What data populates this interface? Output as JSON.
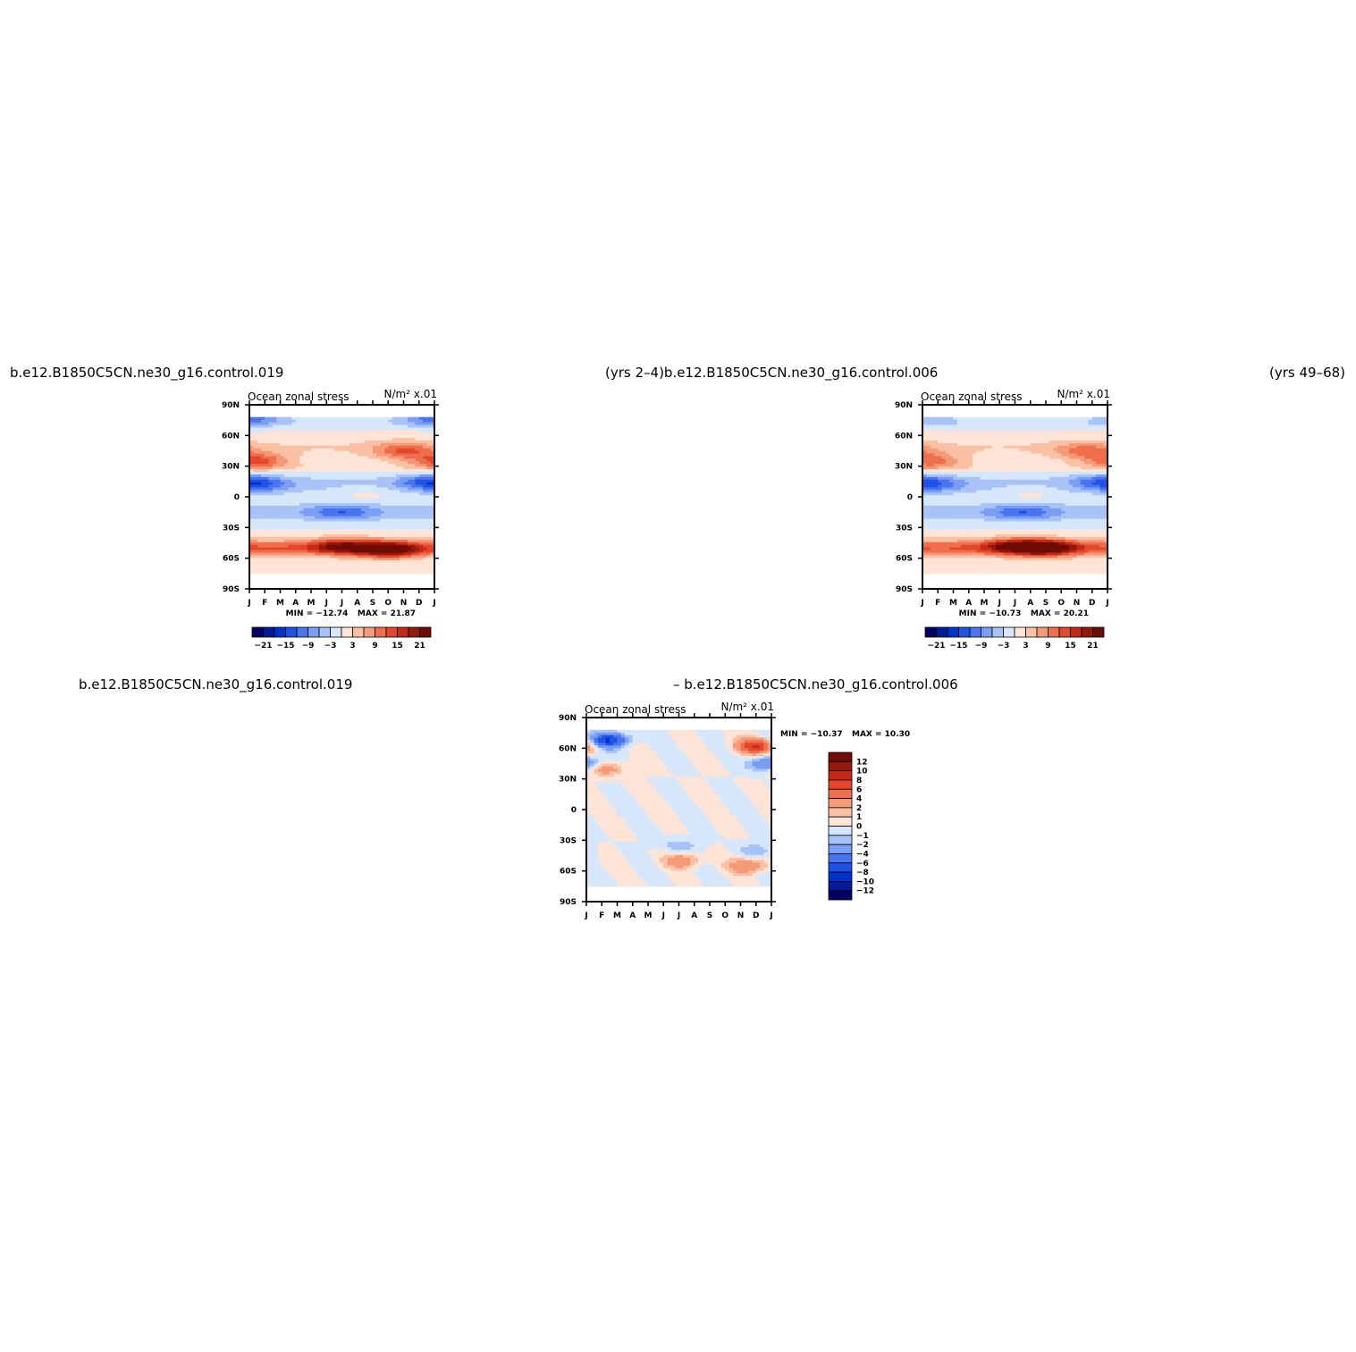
{
  "titles": {
    "top_left": "b.e12.B1850C5CN.ne30_g16.control.019",
    "top_mid": "(yrs  2–4)b.e12.B1850C5CN.ne30_g16.control.006",
    "top_right": "(yrs  49–68)",
    "bottom_left": "b.e12.B1850C5CN.ne30_g16.control.019",
    "bottom_mid": "–  b.e12.B1850C5CN.ne30_g16.control.006"
  },
  "colors": {
    "diverging": [
      "#000066",
      "#001b99",
      "#0033cc",
      "#1f52e6",
      "#4a75f0",
      "#7a9df5",
      "#a8c3f7",
      "#d6e6fb",
      "#fde4d6",
      "#f9c0a3",
      "#f49a78",
      "#ef6f4d",
      "#e4472b",
      "#c42a16",
      "#96180b",
      "#6e0d05"
    ]
  },
  "chart_data": [
    {
      "type": "heatmap",
      "panel": "top-left",
      "title": "Ocean  zonal  stress",
      "units": "N/m²  x.01",
      "x_ticks": [
        "J",
        "F",
        "M",
        "A",
        "M",
        "J",
        "J",
        "A",
        "S",
        "O",
        "N",
        "D",
        "J"
      ],
      "y_ticks": [
        "90N",
        "60N",
        "30N",
        "0",
        "30S",
        "60S",
        "90S"
      ],
      "ylim": [
        -90,
        90
      ],
      "min_text": "MIN = −12.74",
      "max_text": "MAX =  21.87",
      "colorbar_labels": [
        "−21",
        "−15",
        "−9",
        "−3",
        "3",
        "9",
        "15",
        "21"
      ],
      "colorbar_orientation": "horizontal",
      "field_features": [
        {
          "lat": 78,
          "month": 0.5,
          "value": -8
        },
        {
          "lat": 78,
          "month": 11.2,
          "value": -6
        },
        {
          "lat": 35,
          "month": 0.5,
          "value": 15
        },
        {
          "lat": 45,
          "month": 10,
          "value": 12
        },
        {
          "lat": 12,
          "month": 0.8,
          "value": -8
        },
        {
          "lat": 15,
          "month": 11.5,
          "value": -9
        },
        {
          "lat": 5,
          "month": 7.5,
          "value": 3
        },
        {
          "lat": -15,
          "month": 6,
          "value": -9
        },
        {
          "lat": -48,
          "month": 6,
          "value": 15
        },
        {
          "lat": -52,
          "month": 9,
          "value": 21
        }
      ]
    },
    {
      "type": "heatmap",
      "panel": "top-right",
      "title": "Ocean  zonal  stress",
      "units": "N/m²  x.01",
      "x_ticks": [
        "J",
        "F",
        "M",
        "A",
        "M",
        "J",
        "J",
        "A",
        "S",
        "O",
        "N",
        "D",
        "J"
      ],
      "y_ticks": [
        "90N",
        "60N",
        "30N",
        "0",
        "30S",
        "60S",
        "90S"
      ],
      "ylim": [
        -90,
        90
      ],
      "min_text": "MIN = −10.73",
      "max_text": "MAX =  20.21",
      "colorbar_labels": [
        "−21",
        "−15",
        "−9",
        "−3",
        "3",
        "9",
        "15",
        "21"
      ],
      "colorbar_orientation": "horizontal",
      "field_features": [
        {
          "lat": 78,
          "month": 0.5,
          "value": -5
        },
        {
          "lat": 35,
          "month": 0.5,
          "value": 12
        },
        {
          "lat": 45,
          "month": 10.5,
          "value": 10
        },
        {
          "lat": 12,
          "month": 0.8,
          "value": -7
        },
        {
          "lat": 15,
          "month": 11.5,
          "value": -8
        },
        {
          "lat": 5,
          "month": 7,
          "value": 3
        },
        {
          "lat": -15,
          "month": 6.5,
          "value": -9
        },
        {
          "lat": -48,
          "month": 6,
          "value": 15
        },
        {
          "lat": -50,
          "month": 8,
          "value": 20
        }
      ]
    },
    {
      "type": "heatmap",
      "panel": "bottom-difference",
      "title": "Ocean  zonal  stress",
      "units": "N/m²  x.01",
      "x_ticks": [
        "J",
        "F",
        "M",
        "A",
        "M",
        "J",
        "J",
        "A",
        "S",
        "O",
        "N",
        "D",
        "J"
      ],
      "y_ticks": [
        "90N",
        "60N",
        "30N",
        "0",
        "30S",
        "60S",
        "90S"
      ],
      "ylim": [
        -90,
        90
      ],
      "min_text": "MIN = −10.37",
      "max_text": "MAX =  10.30",
      "colorbar_labels": [
        "12",
        "10",
        "8",
        "6",
        "4",
        "2",
        "1",
        "0",
        "−1",
        "−2",
        "−4",
        "−6",
        "−8",
        "−10",
        "−12"
      ],
      "colorbar_orientation": "vertical",
      "field_features": [
        {
          "lat": 68,
          "month": 1.5,
          "value": -10
        },
        {
          "lat": 62,
          "month": 11,
          "value": 10
        },
        {
          "lat": 45,
          "month": 11.8,
          "value": -6
        },
        {
          "lat": 40,
          "month": 1.2,
          "value": 4
        },
        {
          "lat": -50,
          "month": 6.2,
          "value": 4
        },
        {
          "lat": -55,
          "month": 10.5,
          "value": 5
        },
        {
          "lat": -35,
          "month": 6,
          "value": -2
        },
        {
          "lat": -40,
          "month": 11,
          "value": -2
        }
      ]
    }
  ]
}
